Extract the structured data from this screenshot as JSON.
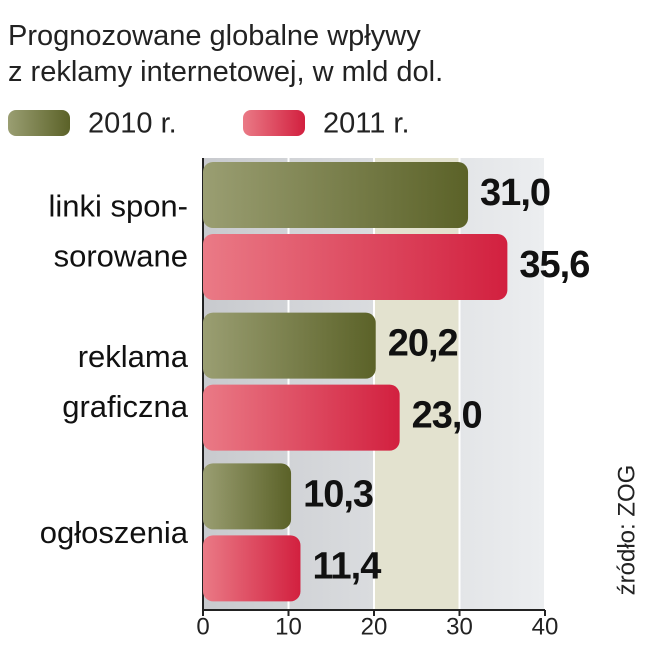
{
  "chart_data": {
    "type": "bar",
    "orientation": "horizontal",
    "title": "Prognozowane globalne wpływy\nz reklamy internetowej, w mld dol.",
    "categories": [
      "linki spon-\nsorowane",
      "reklama\ngraficzna",
      "ogłoszenia"
    ],
    "series": [
      {
        "name": "2010 r.",
        "color": "#5b6228",
        "values": [
          31.0,
          20.2,
          10.3
        ],
        "value_labels": [
          "31,0",
          "20,2",
          "10,3"
        ]
      },
      {
        "name": "2011 r.",
        "color": "#d2203f",
        "values": [
          35.6,
          23.0,
          11.4
        ],
        "value_labels": [
          "35,6",
          "23,0",
          "11,4"
        ]
      }
    ],
    "xlim": [
      0,
      40
    ],
    "xticks": [
      0,
      10,
      20,
      30,
      40
    ],
    "grid": true,
    "source": "źródło: ZOG"
  }
}
